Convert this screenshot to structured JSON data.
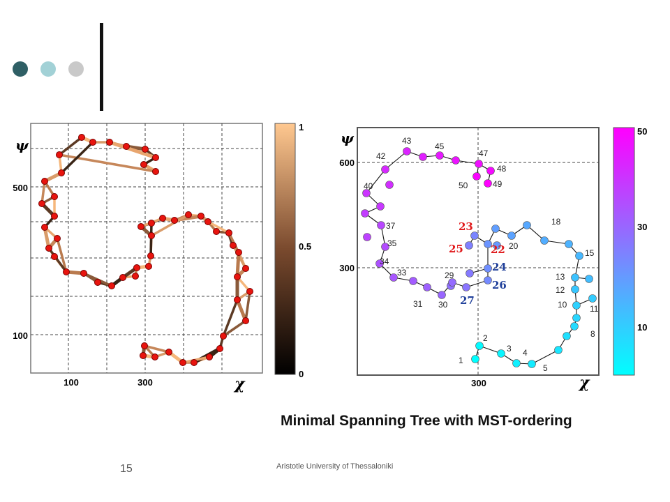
{
  "slide": {
    "caption": "Minimal Spanning Tree with MST-ordering",
    "footer": "Aristotle University of Thessaloniki",
    "page_number": "15"
  },
  "colors": {
    "dot1": "#2f5f65",
    "dot2": "#a2d1d6",
    "dot3": "#c9c9c9",
    "node": "#e8140e",
    "grid": "#444444"
  },
  "left_plot": {
    "y_axis_symbol": "ψ",
    "x_axis_symbol": "χ",
    "x_ticks": [
      "100",
      "300"
    ],
    "y_ticks": [
      "500",
      "100"
    ],
    "colorbar_ticks": [
      "1",
      "0.5",
      "0"
    ],
    "colormap": "copper"
  },
  "right_plot": {
    "y_axis_symbol": "ψ",
    "x_axis_symbol": "χ",
    "x_ticks": [
      "300"
    ],
    "y_ticks": [
      "600",
      "300"
    ],
    "colorbar_ticks": [
      "50",
      "30",
      "10"
    ],
    "colormap": "cool",
    "highlight_red": [
      "23",
      "25",
      "22"
    ],
    "highlight_blue": [
      "24",
      "26",
      "27"
    ],
    "node_labels": [
      "1",
      "2",
      "3",
      "4",
      "5",
      "8",
      "10",
      "11",
      "12",
      "13",
      "15",
      "18",
      "20",
      "29",
      "30",
      "31",
      "33",
      "34",
      "35",
      "37",
      "40",
      "42",
      "43",
      "45",
      "47",
      "48",
      "49",
      "50"
    ]
  }
}
